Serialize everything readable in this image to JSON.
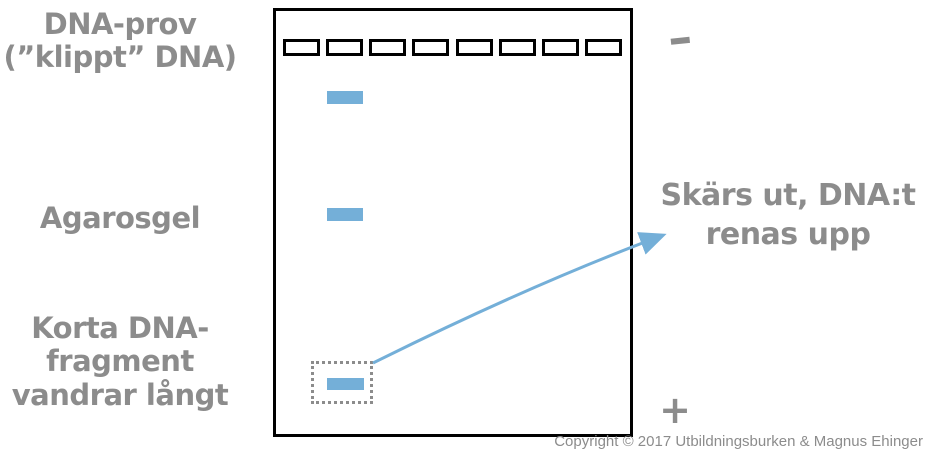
{
  "colors": {
    "band_blue": "#74AFD8",
    "arrow_blue": "#74AFD8",
    "label_gray": "#8C8C8C",
    "box_border": "#000000"
  },
  "labels": {
    "sample": {
      "line1": "DNA-prov",
      "line2": "(”klippt” DNA)"
    },
    "gel": "Agarosgel",
    "short_fragments": {
      "line1": "Korta DNA-",
      "line2": "fragment",
      "line3": "vandrar långt"
    },
    "cut_out": {
      "line1": "Skärs ut, DNA:t",
      "line2": "renas upp"
    },
    "negative_electrode": "–",
    "positive_electrode": "+"
  },
  "gel": {
    "well_count": 8,
    "bands": [
      {
        "lane": 2,
        "position": "top"
      },
      {
        "lane": 2,
        "position": "middle"
      },
      {
        "lane": 2,
        "position": "bottom",
        "highlighted": true
      }
    ]
  },
  "footer": {
    "copyright": "Copyright © 2017 Utbildningsburken & Magnus Ehinger"
  }
}
